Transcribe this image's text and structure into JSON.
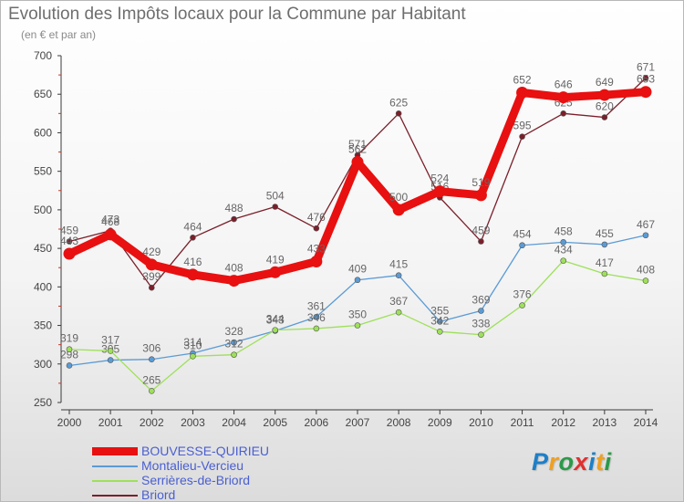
{
  "title": "Evolution des Impôts locaux pour la Commune par Habitant",
  "subtitle": "(en € et par an)",
  "logo": [
    {
      "char": "P",
      "color": "#1e7fc8"
    },
    {
      "char": "r",
      "color": "#f0a020"
    },
    {
      "char": "o",
      "color": "#2a9a48"
    },
    {
      "char": "x",
      "color": "#e03030"
    },
    {
      "char": "i",
      "color": "#1e7fc8"
    },
    {
      "char": "t",
      "color": "#f0a020"
    },
    {
      "char": "i",
      "color": "#2a9a48"
    }
  ],
  "chart_data": {
    "type": "line",
    "x": [
      "2000",
      "2001",
      "2002",
      "2003",
      "2004",
      "2005",
      "2006",
      "2007",
      "2008",
      "2009",
      "2010",
      "2011",
      "2012",
      "2013",
      "2014"
    ],
    "ylim": [
      250,
      700
    ],
    "yticks": [
      "250",
      "300",
      "350",
      "400",
      "450",
      "500",
      "550",
      "600",
      "650",
      "700"
    ],
    "grid": false,
    "legend_position": "bottom-left",
    "series": [
      {
        "name": "BOUVESSE-QUIRIEU",
        "color": "#e81010",
        "emphasis": true,
        "values": [
          443,
          468,
          429,
          416,
          408,
          419,
          433,
          562,
          500,
          524,
          519,
          652,
          646,
          649,
          653
        ]
      },
      {
        "name": "Montalieu-Vercieu",
        "color": "#5b9bd5",
        "values": [
          298,
          305,
          306,
          314,
          328,
          343,
          361,
          409,
          415,
          355,
          369,
          454,
          458,
          455,
          467
        ]
      },
      {
        "name": "Serrières-de-Briord",
        "color": "#9ee05a",
        "values": [
          319,
          317,
          265,
          310,
          312,
          344,
          346,
          350,
          367,
          342,
          338,
          376,
          434,
          417,
          408
        ]
      },
      {
        "name": "Briord",
        "color": "#7b1f2a",
        "values": [
          459,
          473,
          399,
          464,
          488,
          504,
          476,
          571,
          625,
          516,
          459,
          595,
          625,
          620,
          671
        ]
      }
    ]
  }
}
